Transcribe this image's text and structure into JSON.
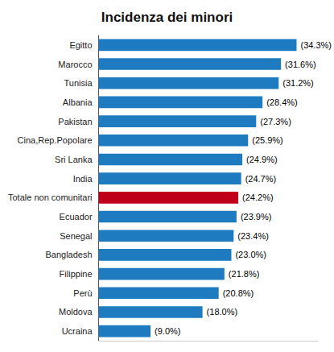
{
  "chart_data": {
    "type": "bar",
    "orientation": "horizontal",
    "title": "Incidenza dei minori",
    "categories": [
      "Ucraina",
      "Moldova",
      "Perù",
      "Filippine",
      "Bangladesh",
      "Senegal",
      "Ecuador",
      "Totale non comunitari",
      "India",
      "Sri Lanka",
      "Cina,Rep.Popolare",
      "Pakistan",
      "Albania",
      "Tunisia",
      "Marocco",
      "Egitto"
    ],
    "values": [
      9.0,
      18.0,
      20.8,
      21.8,
      23.0,
      23.4,
      23.9,
      24.2,
      24.7,
      24.9,
      25.9,
      27.3,
      28.4,
      31.2,
      31.6,
      34.3
    ],
    "value_labels": [
      "(9.0%)",
      "(18.0%)",
      "(20.8%)",
      "(21.8%)",
      "(23.0%)",
      "(23.4%)",
      "(23.9%)",
      "(24.2%)",
      "(24.7%)",
      "(24.9%)",
      "(25.9%)",
      "(27.3%)",
      "(28.4%)",
      "(31.2%)",
      "(31.6%)",
      "(34.3%)"
    ],
    "colors": [
      "#1f7bbf",
      "#1f7bbf",
      "#1f7bbf",
      "#1f7bbf",
      "#1f7bbf",
      "#1f7bbf",
      "#1f7bbf",
      "#c0001a",
      "#1f7bbf",
      "#1f7bbf",
      "#1f7bbf",
      "#1f7bbf",
      "#1f7bbf",
      "#1f7bbf",
      "#1f7bbf",
      "#1f7bbf"
    ],
    "xlim": [
      0,
      38
    ],
    "data_labels": true,
    "tick_labels": "y",
    "grid": false
  }
}
